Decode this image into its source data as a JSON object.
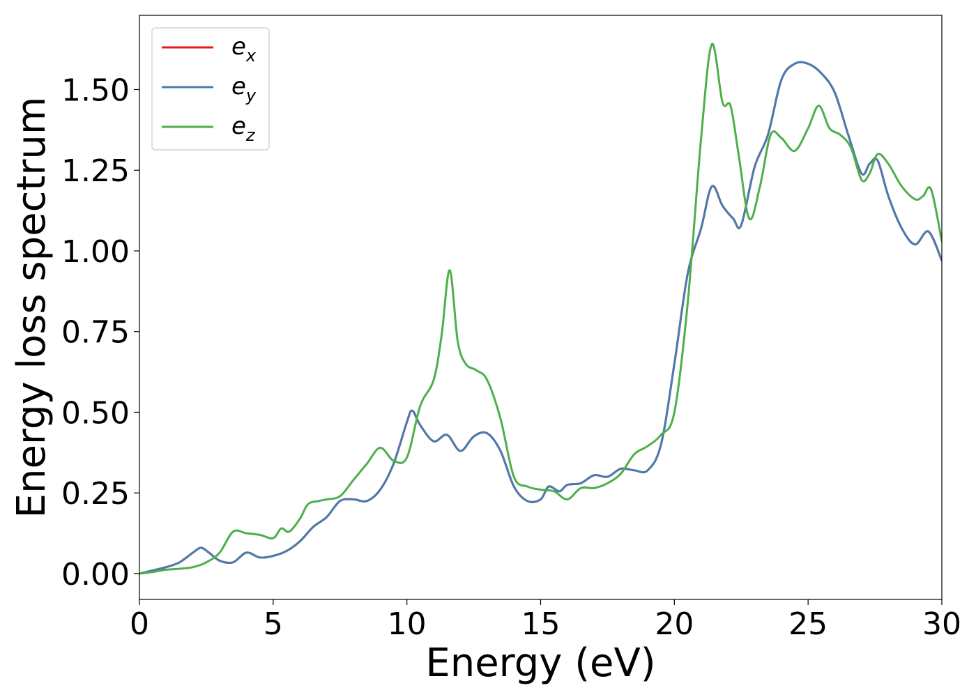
{
  "chart_data": {
    "type": "line",
    "xlabel": "Energy (eV)",
    "ylabel": "Energy loss spectrum",
    "xlim": [
      0,
      30
    ],
    "ylim": [
      -0.08,
      1.73
    ],
    "xticks": [
      0,
      5,
      10,
      15,
      20,
      25,
      30
    ],
    "xtick_labels": [
      "0",
      "5",
      "10",
      "15",
      "20",
      "25",
      "30"
    ],
    "yticks": [
      0.0,
      0.25,
      0.5,
      0.75,
      1.0,
      1.25,
      1.5
    ],
    "ytick_labels": [
      "0.00",
      "0.25",
      "0.50",
      "0.75",
      "1.00",
      "1.25",
      "1.50"
    ],
    "grid": false,
    "legend_position": "top-left",
    "series": [
      {
        "name": "e_x",
        "base": "e",
        "sub": "x",
        "color": "#e41a1c",
        "x": [
          0,
          0.5,
          1,
          1.5,
          2,
          2.3,
          2.6,
          3,
          3.5,
          4,
          4.5,
          5,
          5.5,
          6,
          6.5,
          7,
          7.5,
          8,
          8.5,
          9,
          9.5,
          10,
          10.2,
          10.5,
          11,
          11.5,
          12,
          12.5,
          13,
          13.5,
          14,
          14.5,
          15,
          15.3,
          15.7,
          16,
          16.5,
          17,
          17.5,
          18,
          18.5,
          19,
          19.5,
          20,
          20.5,
          21,
          21.4,
          21.8,
          22.2,
          22.5,
          23,
          23.5,
          24,
          24.5,
          25,
          25.5,
          26,
          26.5,
          27,
          27.3,
          27.6,
          28,
          28.5,
          29,
          29.5,
          30
        ],
        "y": [
          0.0,
          0.01,
          0.02,
          0.035,
          0.065,
          0.08,
          0.065,
          0.04,
          0.035,
          0.065,
          0.05,
          0.055,
          0.07,
          0.1,
          0.145,
          0.175,
          0.225,
          0.23,
          0.225,
          0.26,
          0.34,
          0.47,
          0.505,
          0.46,
          0.41,
          0.43,
          0.38,
          0.425,
          0.435,
          0.38,
          0.27,
          0.225,
          0.23,
          0.27,
          0.255,
          0.275,
          0.28,
          0.305,
          0.3,
          0.325,
          0.32,
          0.32,
          0.4,
          0.65,
          0.93,
          1.07,
          1.2,
          1.14,
          1.1,
          1.08,
          1.26,
          1.36,
          1.53,
          1.58,
          1.58,
          1.55,
          1.49,
          1.36,
          1.24,
          1.27,
          1.28,
          1.17,
          1.07,
          1.02,
          1.06,
          0.97
        ]
      },
      {
        "name": "e_y",
        "base": "e",
        "sub": "y",
        "color": "#4a7bb0",
        "x": [
          0,
          0.5,
          1,
          1.5,
          2,
          2.3,
          2.6,
          3,
          3.5,
          4,
          4.5,
          5,
          5.5,
          6,
          6.5,
          7,
          7.5,
          8,
          8.5,
          9,
          9.5,
          10,
          10.2,
          10.5,
          11,
          11.5,
          12,
          12.5,
          13,
          13.5,
          14,
          14.5,
          15,
          15.3,
          15.7,
          16,
          16.5,
          17,
          17.5,
          18,
          18.5,
          19,
          19.5,
          20,
          20.5,
          21,
          21.4,
          21.8,
          22.2,
          22.5,
          23,
          23.5,
          24,
          24.5,
          25,
          25.5,
          26,
          26.5,
          27,
          27.3,
          27.6,
          28,
          28.5,
          29,
          29.5,
          30
        ],
        "y": [
          0.0,
          0.01,
          0.02,
          0.035,
          0.065,
          0.08,
          0.065,
          0.04,
          0.035,
          0.065,
          0.05,
          0.055,
          0.07,
          0.1,
          0.145,
          0.175,
          0.225,
          0.23,
          0.225,
          0.26,
          0.34,
          0.47,
          0.505,
          0.46,
          0.41,
          0.43,
          0.38,
          0.425,
          0.435,
          0.38,
          0.27,
          0.225,
          0.23,
          0.27,
          0.255,
          0.275,
          0.28,
          0.305,
          0.3,
          0.325,
          0.32,
          0.32,
          0.4,
          0.65,
          0.93,
          1.07,
          1.2,
          1.14,
          1.1,
          1.08,
          1.26,
          1.36,
          1.53,
          1.58,
          1.58,
          1.55,
          1.49,
          1.36,
          1.24,
          1.27,
          1.28,
          1.17,
          1.07,
          1.02,
          1.06,
          0.97
        ]
      },
      {
        "name": "e_z",
        "base": "e",
        "sub": "z",
        "color": "#4daf4a",
        "x": [
          0,
          0.5,
          1,
          1.5,
          2,
          2.5,
          3,
          3.5,
          4,
          4.5,
          5,
          5.3,
          5.6,
          6,
          6.3,
          6.7,
          7,
          7.5,
          8,
          8.5,
          9,
          9.5,
          10,
          10.5,
          11,
          11.3,
          11.6,
          11.9,
          12.2,
          12.6,
          13,
          13.5,
          14,
          14.5,
          15,
          15.5,
          16,
          16.5,
          17,
          17.5,
          18,
          18.5,
          19,
          19.5,
          20,
          20.5,
          21,
          21.4,
          21.8,
          22.1,
          22.4,
          22.8,
          23.2,
          23.6,
          24,
          24.5,
          25,
          25.4,
          25.8,
          26.2,
          26.6,
          27,
          27.3,
          27.6,
          28,
          28.5,
          29,
          29.3,
          29.6,
          30
        ],
        "y": [
          0.0,
          0.005,
          0.012,
          0.015,
          0.02,
          0.035,
          0.065,
          0.13,
          0.125,
          0.12,
          0.11,
          0.14,
          0.13,
          0.17,
          0.215,
          0.225,
          0.23,
          0.24,
          0.29,
          0.34,
          0.39,
          0.35,
          0.36,
          0.52,
          0.6,
          0.74,
          0.94,
          0.72,
          0.65,
          0.63,
          0.6,
          0.48,
          0.3,
          0.27,
          0.26,
          0.255,
          0.23,
          0.265,
          0.265,
          0.28,
          0.31,
          0.37,
          0.395,
          0.43,
          0.5,
          0.84,
          1.35,
          1.64,
          1.46,
          1.45,
          1.3,
          1.1,
          1.2,
          1.36,
          1.35,
          1.31,
          1.38,
          1.45,
          1.38,
          1.36,
          1.32,
          1.22,
          1.24,
          1.3,
          1.27,
          1.2,
          1.16,
          1.17,
          1.19,
          1.03
        ]
      }
    ]
  }
}
